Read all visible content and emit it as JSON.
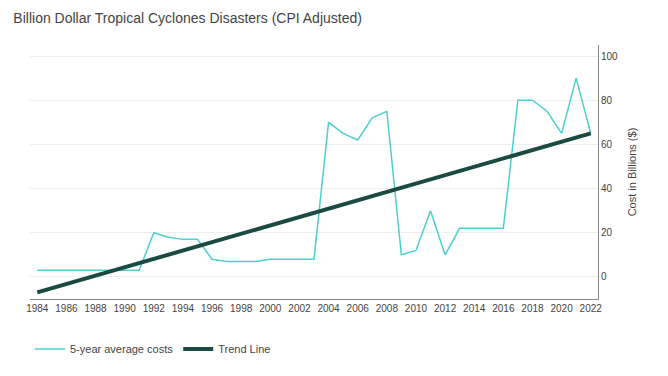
{
  "chart_data": {
    "type": "line",
    "title": "Billion Dollar Tropical Cyclones Disasters (CPI Adjusted)",
    "y_label": "Cost in Billions ($)",
    "x": [
      1984,
      1985,
      1986,
      1987,
      1988,
      1989,
      1990,
      1991,
      1992,
      1993,
      1994,
      1995,
      1996,
      1997,
      1998,
      1999,
      2000,
      2001,
      2002,
      2003,
      2004,
      2005,
      2006,
      2007,
      2008,
      2009,
      2010,
      2011,
      2012,
      2013,
      2014,
      2015,
      2016,
      2017,
      2018,
      2019,
      2020,
      2021,
      2022
    ],
    "series": [
      {
        "name": "5-year average costs",
        "color": "#4ECFCF",
        "values": [
          3,
          3,
          3,
          3,
          3,
          3,
          3,
          3,
          20,
          18,
          17,
          17,
          8,
          7,
          7,
          7,
          8,
          8,
          8,
          8,
          70,
          65,
          62,
          72,
          75,
          10,
          12,
          30,
          10,
          22,
          22,
          22,
          22,
          80,
          80,
          75,
          65,
          90,
          65
        ]
      },
      {
        "name": "Trend Line",
        "color": "#1B4A42",
        "x": [
          1984,
          2022
        ],
        "values": [
          -7,
          65
        ]
      }
    ],
    "xlim": [
      1983.5,
      2022.5
    ],
    "xticks": [
      1984,
      1986,
      1988,
      1990,
      1992,
      1994,
      1996,
      1998,
      2000,
      2002,
      2004,
      2006,
      2008,
      2010,
      2012,
      2014,
      2016,
      2018,
      2020,
      2022
    ],
    "ylim": [
      -10,
      105
    ],
    "yticks": [
      0,
      20,
      40,
      60,
      80,
      100
    ],
    "grid": true,
    "legend": "lower left"
  }
}
